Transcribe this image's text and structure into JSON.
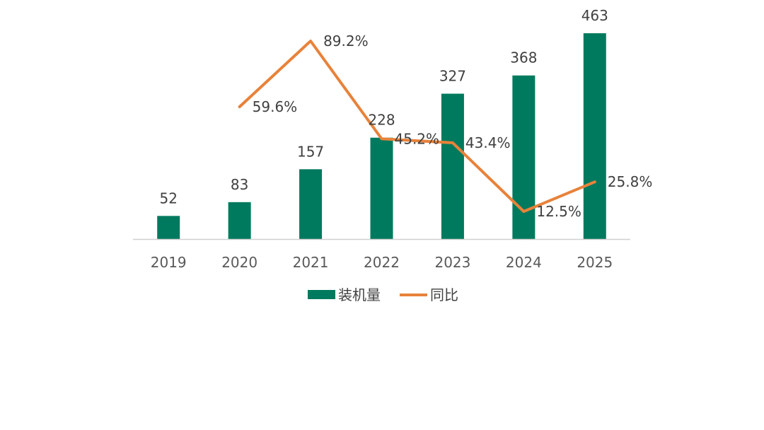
{
  "chart_data": {
    "type": "bar+line",
    "categories": [
      "2019",
      "2020",
      "2021",
      "2022",
      "2023",
      "2024",
      "2025"
    ],
    "series": [
      {
        "name": "装机量",
        "type": "bar",
        "values": [
          52,
          83,
          157,
          228,
          327,
          368,
          463
        ],
        "labels": [
          "52",
          "83",
          "157",
          "228",
          "327",
          "368",
          "463"
        ],
        "color": "#007A5E"
      },
      {
        "name": "同比",
        "type": "line",
        "values": [
          null,
          59.6,
          89.2,
          45.2,
          43.4,
          12.5,
          25.8
        ],
        "labels": [
          "",
          "59.6%",
          "89.2%",
          "45.2%",
          "43.4%",
          "12.5%",
          "25.8%"
        ],
        "color": "#E8823A"
      }
    ],
    "y_range_bar": [
      0,
      463
    ],
    "y_range_line": [
      12.5,
      89.2
    ],
    "legend_position": "bottom"
  },
  "colors": {
    "bar": "#007A5E",
    "line": "#E8823A",
    "axis": "#D0D0D0"
  }
}
